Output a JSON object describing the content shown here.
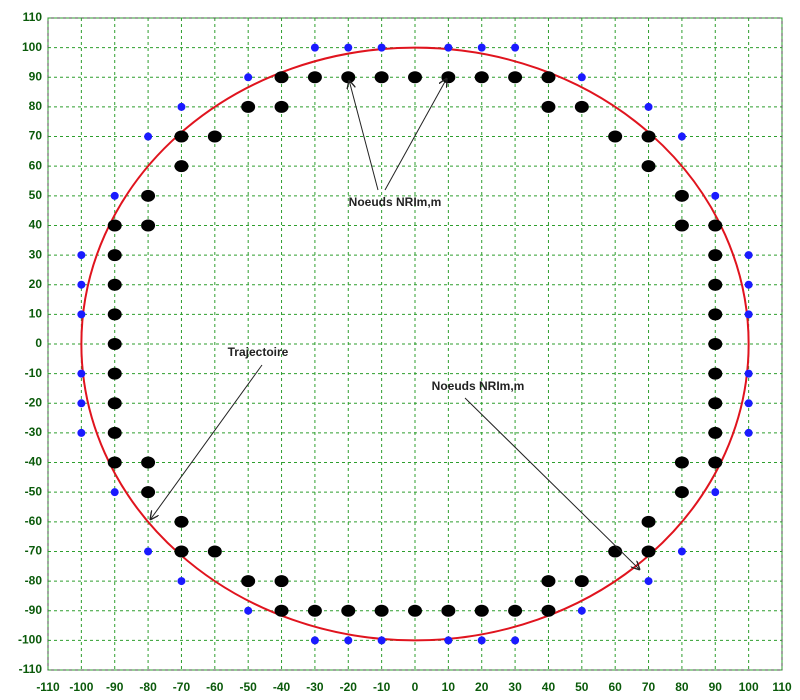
{
  "chart_data": {
    "type": "scatter",
    "xlim": [
      -110,
      110
    ],
    "ylim": [
      -110,
      110
    ],
    "xticks": [
      -110,
      -100,
      -90,
      -80,
      -70,
      -60,
      -50,
      -40,
      -30,
      -20,
      -10,
      0,
      10,
      20,
      30,
      40,
      50,
      60,
      70,
      80,
      90,
      100,
      110
    ],
    "yticks": [
      -110,
      -100,
      -90,
      -80,
      -70,
      -60,
      -50,
      -40,
      -30,
      -20,
      -10,
      0,
      10,
      20,
      30,
      40,
      50,
      60,
      70,
      80,
      90,
      100,
      110
    ],
    "grid": true,
    "grid_color": "#2e9e2e",
    "circle": {
      "cx": 0,
      "cy": 0,
      "r": 100,
      "color": "#e0141e"
    },
    "series": [
      {
        "color": "#000000",
        "x": [
          -40,
          -30,
          -20,
          -10,
          0,
          10,
          20,
          30,
          40,
          -50,
          -40,
          40,
          50,
          -70,
          -60,
          60,
          70,
          -70,
          70,
          -80,
          80,
          -90,
          -80,
          80,
          90,
          -90,
          90,
          -90,
          90,
          -90,
          90,
          -90,
          90,
          -90,
          90,
          -90,
          90,
          -90,
          90,
          -90,
          -80,
          80,
          90,
          -80,
          80,
          -70,
          70,
          -70,
          -60,
          60,
          70,
          -50,
          -40,
          40,
          50,
          -40,
          -30,
          -20,
          -10,
          0,
          10,
          20,
          30,
          40
        ],
        "y": [
          90,
          90,
          90,
          90,
          90,
          90,
          90,
          90,
          90,
          80,
          80,
          80,
          80,
          70,
          70,
          70,
          70,
          60,
          60,
          50,
          50,
          40,
          40,
          40,
          40,
          30,
          30,
          20,
          20,
          10,
          10,
          0,
          0,
          -10,
          -10,
          -20,
          -20,
          -30,
          -30,
          -40,
          -40,
          -40,
          -40,
          -50,
          -50,
          -60,
          -60,
          -70,
          -70,
          -70,
          -70,
          -80,
          -80,
          -80,
          -80,
          -90,
          -90,
          -90,
          -90,
          -90,
          -90,
          -90,
          -90,
          -90
        ]
      },
      {
        "color": "#1a1aff",
        "x": [
          -30,
          -20,
          -10,
          10,
          20,
          30,
          -50,
          50,
          -70,
          70,
          -80,
          80,
          -90,
          90,
          -100,
          100,
          -100,
          100,
          -100,
          100,
          -100,
          100,
          -100,
          100,
          -100,
          100,
          -90,
          90,
          -80,
          80,
          -70,
          70,
          -50,
          50,
          -30,
          -20,
          -10,
          10,
          20,
          30
        ],
        "y": [
          100,
          100,
          100,
          100,
          100,
          100,
          90,
          90,
          80,
          80,
          70,
          70,
          50,
          50,
          30,
          30,
          20,
          20,
          10,
          10,
          -10,
          -10,
          -20,
          -20,
          -30,
          -30,
          -50,
          -50,
          -70,
          -70,
          -80,
          -80,
          -90,
          -90,
          -100,
          -100,
          -100,
          -100,
          -100,
          -100
        ]
      }
    ],
    "annotations": [
      "Noeuds NRIm,m",
      "Trajectoire",
      "Noeuds NRIm,m"
    ]
  }
}
